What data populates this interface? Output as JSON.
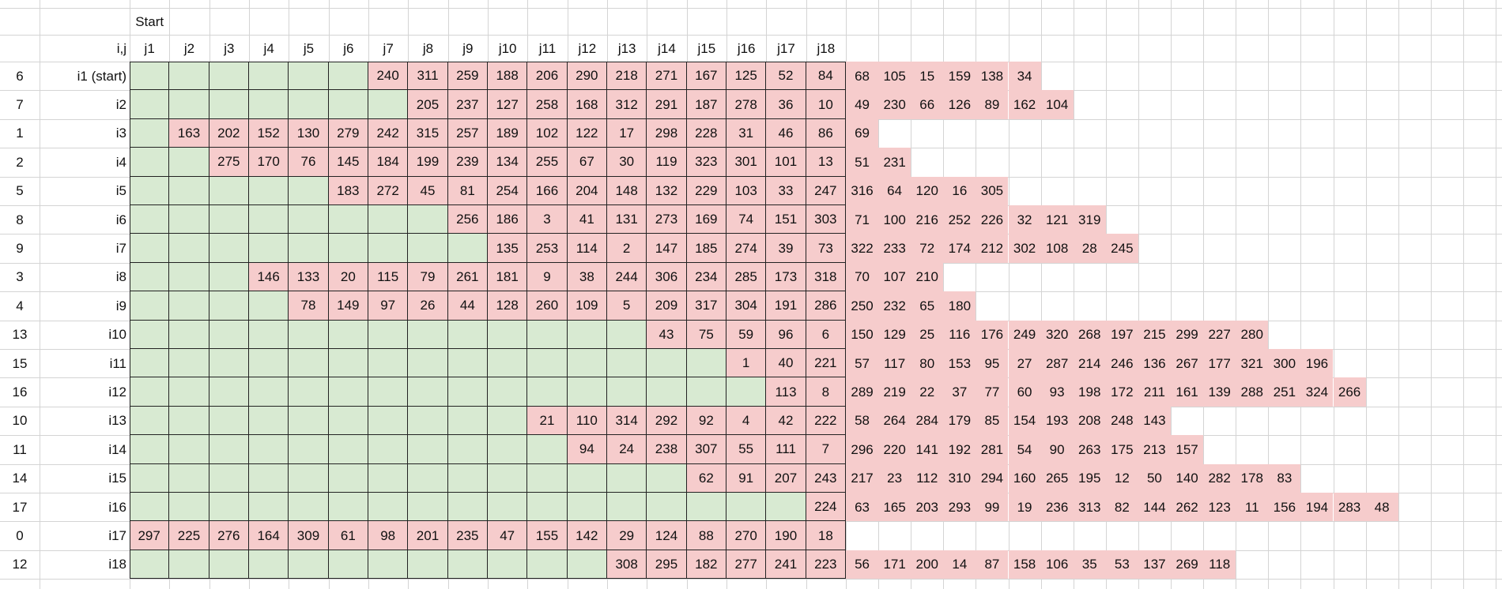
{
  "sheet": {
    "start_label": "Start",
    "corner_label": "i,j",
    "col_headers": [
      "j1",
      "j2",
      "j3",
      "j4",
      "j5",
      "j6",
      "j7",
      "j8",
      "j9",
      "j10",
      "j11",
      "j12",
      "j13",
      "j14",
      "j15",
      "j16",
      "j17",
      "j18"
    ],
    "rows": [
      {
        "idx": "6",
        "label": "i1 (start)",
        "start": 7,
        "vals": [
          "240",
          "311",
          "259",
          "188",
          "206",
          "290",
          "218",
          "271",
          "167",
          "125",
          "52",
          "84"
        ],
        "extra": [
          "68",
          "105",
          "15",
          "159",
          "138",
          "34"
        ]
      },
      {
        "idx": "7",
        "label": "i2",
        "start": 8,
        "vals": [
          "205",
          "237",
          "127",
          "258",
          "168",
          "312",
          "291",
          "187",
          "278",
          "36",
          "10"
        ],
        "extra": [
          "49",
          "230",
          "66",
          "126",
          "89",
          "162",
          "104"
        ]
      },
      {
        "idx": "1",
        "label": "i3",
        "start": 2,
        "vals": [
          "163",
          "202",
          "152",
          "130",
          "279",
          "242",
          "315",
          "257",
          "189",
          "102",
          "122",
          "17",
          "298",
          "228",
          "31",
          "46",
          "86"
        ],
        "extra": [
          "69"
        ]
      },
      {
        "idx": "2",
        "label": "i4",
        "start": 3,
        "vals": [
          "275",
          "170",
          "76",
          "145",
          "184",
          "199",
          "239",
          "134",
          "255",
          "67",
          "30",
          "119",
          "323",
          "301",
          "101",
          "13"
        ],
        "extra": [
          "51",
          "231"
        ]
      },
      {
        "idx": "5",
        "label": "i5",
        "start": 6,
        "vals": [
          "183",
          "272",
          "45",
          "81",
          "254",
          "166",
          "204",
          "148",
          "132",
          "229",
          "103",
          "33",
          "247"
        ],
        "extra": [
          "316",
          "64",
          "120",
          "16",
          "305"
        ]
      },
      {
        "idx": "8",
        "label": "i6",
        "start": 9,
        "vals": [
          "256",
          "186",
          "3",
          "41",
          "131",
          "273",
          "169",
          "74",
          "151",
          "303"
        ],
        "extra": [
          "71",
          "100",
          "216",
          "252",
          "226",
          "32",
          "121",
          "319"
        ]
      },
      {
        "idx": "9",
        "label": "i7",
        "start": 10,
        "vals": [
          "135",
          "253",
          "114",
          "2",
          "147",
          "185",
          "274",
          "39",
          "73"
        ],
        "extra": [
          "322",
          "233",
          "72",
          "174",
          "212",
          "302",
          "108",
          "28",
          "245"
        ]
      },
      {
        "idx": "3",
        "label": "i8",
        "start": 4,
        "vals": [
          "146",
          "133",
          "20",
          "115",
          "79",
          "261",
          "181",
          "9",
          "38",
          "244",
          "306",
          "234",
          "285",
          "173",
          "318"
        ],
        "extra": [
          "70",
          "107",
          "210"
        ]
      },
      {
        "idx": "4",
        "label": "i9",
        "start": 5,
        "vals": [
          "78",
          "149",
          "97",
          "26",
          "44",
          "128",
          "260",
          "109",
          "5",
          "209",
          "317",
          "304",
          "191",
          "286"
        ],
        "extra": [
          "250",
          "232",
          "65",
          "180"
        ]
      },
      {
        "idx": "13",
        "label": "i10",
        "start": 14,
        "vals": [
          "43",
          "75",
          "59",
          "96",
          "6"
        ],
        "extra": [
          "150",
          "129",
          "25",
          "116",
          "176",
          "249",
          "320",
          "268",
          "197",
          "215",
          "299",
          "227",
          "280"
        ]
      },
      {
        "idx": "15",
        "label": "i11",
        "start": 16,
        "vals": [
          "1",
          "40",
          "221"
        ],
        "extra": [
          "57",
          "117",
          "80",
          "153",
          "95",
          "27",
          "287",
          "214",
          "246",
          "136",
          "267",
          "177",
          "321",
          "300",
          "196"
        ]
      },
      {
        "idx": "16",
        "label": "i12",
        "start": 17,
        "vals": [
          "113",
          "8"
        ],
        "extra": [
          "289",
          "219",
          "22",
          "37",
          "77",
          "60",
          "93",
          "198",
          "172",
          "211",
          "161",
          "139",
          "288",
          "251",
          "324",
          "266"
        ]
      },
      {
        "idx": "10",
        "label": "i13",
        "start": 11,
        "vals": [
          "21",
          "110",
          "314",
          "292",
          "92",
          "4",
          "42",
          "222"
        ],
        "extra": [
          "58",
          "264",
          "284",
          "179",
          "85",
          "154",
          "193",
          "208",
          "248",
          "143"
        ]
      },
      {
        "idx": "11",
        "label": "i14",
        "start": 12,
        "vals": [
          "94",
          "24",
          "238",
          "307",
          "55",
          "111",
          "7"
        ],
        "extra": [
          "296",
          "220",
          "141",
          "192",
          "281",
          "54",
          "90",
          "263",
          "175",
          "213",
          "157"
        ]
      },
      {
        "idx": "14",
        "label": "i15",
        "start": 15,
        "vals": [
          "62",
          "91",
          "207",
          "243"
        ],
        "extra": [
          "217",
          "23",
          "112",
          "310",
          "294",
          "160",
          "265",
          "195",
          "12",
          "50",
          "140",
          "282",
          "178",
          "83"
        ]
      },
      {
        "idx": "17",
        "label": "i16",
        "start": 18,
        "vals": [
          "224"
        ],
        "extra": [
          "63",
          "165",
          "203",
          "293",
          "99",
          "19",
          "236",
          "313",
          "82",
          "144",
          "262",
          "123",
          "11",
          "156",
          "194",
          "283",
          "48"
        ]
      },
      {
        "idx": "0",
        "label": "i17",
        "start": 1,
        "vals": [
          "297",
          "225",
          "276",
          "164",
          "309",
          "61",
          "98",
          "201",
          "235",
          "47",
          "155",
          "142",
          "29",
          "124",
          "88",
          "270",
          "190",
          "18"
        ],
        "extra": []
      },
      {
        "idx": "12",
        "label": "i18",
        "start": 13,
        "vals": [
          "308",
          "295",
          "182",
          "277",
          "241",
          "223"
        ],
        "extra": [
          "56",
          "171",
          "200",
          "14",
          "87",
          "158",
          "106",
          "35",
          "53",
          "137",
          "269",
          "118"
        ]
      }
    ]
  }
}
